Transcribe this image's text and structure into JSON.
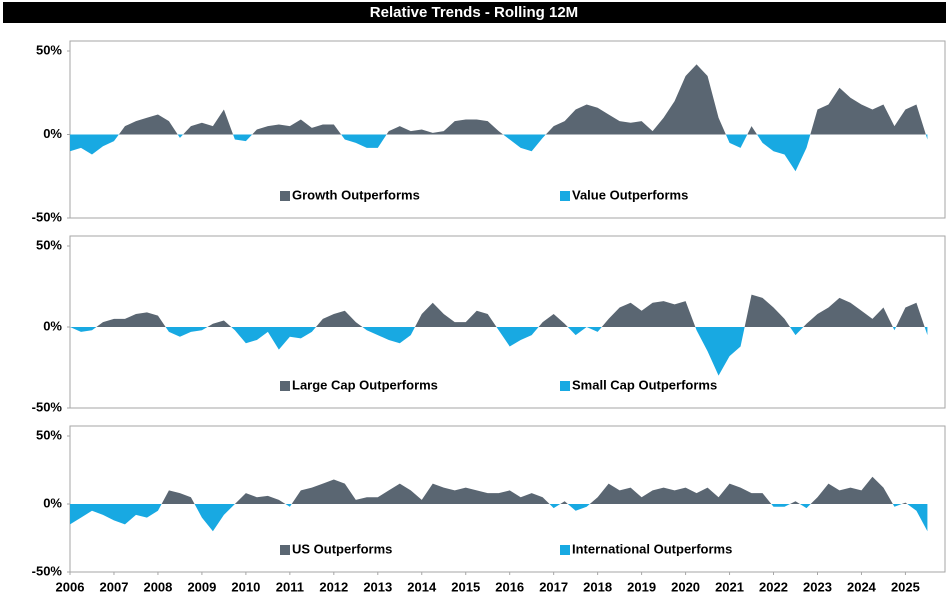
{
  "title": "Relative Trends - Rolling 12M",
  "chart_data": [
    {
      "type": "area",
      "legend": [
        {
          "name": "Growth Outperforms",
          "color": "#5a6672"
        },
        {
          "name": "Value Outperforms",
          "color": "#18a9e2"
        }
      ],
      "x": [
        2006,
        2006.25,
        2006.5,
        2006.75,
        2007,
        2007.25,
        2007.5,
        2007.75,
        2008,
        2008.25,
        2008.5,
        2008.75,
        2009,
        2009.25,
        2009.5,
        2009.75,
        2010,
        2010.25,
        2010.5,
        2010.75,
        2011,
        2011.25,
        2011.5,
        2011.75,
        2012,
        2012.25,
        2012.5,
        2012.75,
        2013,
        2013.25,
        2013.5,
        2013.75,
        2014,
        2014.25,
        2014.5,
        2014.75,
        2015,
        2015.25,
        2015.5,
        2015.75,
        2016,
        2016.25,
        2016.5,
        2016.75,
        2017,
        2017.25,
        2017.5,
        2017.75,
        2018,
        2018.25,
        2018.5,
        2018.75,
        2019,
        2019.25,
        2019.5,
        2019.75,
        2020,
        2020.25,
        2020.5,
        2020.75,
        2021,
        2021.25,
        2021.5,
        2021.75,
        2022,
        2022.25,
        2022.5,
        2022.75,
        2023,
        2023.25,
        2023.5,
        2023.75,
        2024,
        2024.25,
        2024.5,
        2024.75,
        2025,
        2025.25,
        2025.5
      ],
      "values": [
        -10,
        -8,
        -12,
        -7,
        -4,
        5,
        8,
        10,
        12,
        8,
        -2,
        5,
        7,
        5,
        15,
        -3,
        -4,
        3,
        5,
        6,
        5,
        9,
        4,
        6,
        6,
        -3,
        -5,
        -8,
        -8,
        2,
        5,
        2,
        3,
        1,
        2,
        8,
        9,
        9,
        8,
        2,
        -3,
        -8,
        -10,
        -2,
        5,
        8,
        15,
        18,
        16,
        12,
        8,
        7,
        8,
        2,
        10,
        20,
        35,
        42,
        35,
        10,
        -5,
        -8,
        5,
        -5,
        -10,
        -12,
        -22,
        -8,
        15,
        18,
        28,
        22,
        18,
        15,
        18,
        5,
        15,
        18,
        -3
      ],
      "xlim": [
        2006,
        2025.9
      ],
      "ylim": [
        -50,
        50
      ],
      "yticks": [
        {
          "value": 50,
          "label": "50%"
        },
        {
          "value": 0,
          "label": "0%"
        },
        {
          "value": -50,
          "label": "-50%"
        }
      ]
    },
    {
      "type": "area",
      "legend": [
        {
          "name": "Large Cap Outperforms",
          "color": "#5a6672"
        },
        {
          "name": "Small Cap Outperforms",
          "color": "#18a9e2"
        }
      ],
      "x": [
        2006,
        2006.25,
        2006.5,
        2006.75,
        2007,
        2007.25,
        2007.5,
        2007.75,
        2008,
        2008.25,
        2008.5,
        2008.75,
        2009,
        2009.25,
        2009.5,
        2009.75,
        2010,
        2010.25,
        2010.5,
        2010.75,
        2011,
        2011.25,
        2011.5,
        2011.75,
        2012,
        2012.25,
        2012.5,
        2012.75,
        2013,
        2013.25,
        2013.5,
        2013.75,
        2014,
        2014.25,
        2014.5,
        2014.75,
        2015,
        2015.25,
        2015.5,
        2015.75,
        2016,
        2016.25,
        2016.5,
        2016.75,
        2017,
        2017.25,
        2017.5,
        2017.75,
        2018,
        2018.25,
        2018.5,
        2018.75,
        2019,
        2019.25,
        2019.5,
        2019.75,
        2020,
        2020.25,
        2020.5,
        2020.75,
        2021,
        2021.25,
        2021.5,
        2021.75,
        2022,
        2022.25,
        2022.5,
        2022.75,
        2023,
        2023.25,
        2023.5,
        2023.75,
        2024,
        2024.25,
        2024.5,
        2024.75,
        2025,
        2025.25,
        2025.5
      ],
      "values": [
        0,
        -3,
        -2,
        3,
        5,
        5,
        8,
        9,
        7,
        -3,
        -6,
        -3,
        -2,
        2,
        4,
        -2,
        -10,
        -8,
        -3,
        -14,
        -6,
        -7,
        -3,
        5,
        8,
        10,
        3,
        -2,
        -5,
        -8,
        -10,
        -5,
        8,
        15,
        8,
        3,
        3,
        10,
        8,
        -2,
        -12,
        -8,
        -5,
        3,
        8,
        2,
        -5,
        0,
        -3,
        5,
        12,
        15,
        10,
        15,
        16,
        14,
        16,
        -2,
        -15,
        -30,
        -18,
        -12,
        20,
        18,
        12,
        5,
        -5,
        2,
        8,
        12,
        18,
        15,
        10,
        5,
        12,
        -2,
        12,
        15,
        -5
      ],
      "xlim": [
        2006,
        2025.9
      ],
      "ylim": [
        -50,
        50
      ],
      "yticks": [
        {
          "value": 50,
          "label": "50%"
        },
        {
          "value": 0,
          "label": "0%"
        },
        {
          "value": -50,
          "label": "-50%"
        }
      ]
    },
    {
      "type": "area",
      "legend": [
        {
          "name": "US Outperforms",
          "color": "#5a6672"
        },
        {
          "name": "International Outperforms",
          "color": "#18a9e2"
        }
      ],
      "x": [
        2006,
        2006.25,
        2006.5,
        2006.75,
        2007,
        2007.25,
        2007.5,
        2007.75,
        2008,
        2008.25,
        2008.5,
        2008.75,
        2009,
        2009.25,
        2009.5,
        2009.75,
        2010,
        2010.25,
        2010.5,
        2010.75,
        2011,
        2011.25,
        2011.5,
        2011.75,
        2012,
        2012.25,
        2012.5,
        2012.75,
        2013,
        2013.25,
        2013.5,
        2013.75,
        2014,
        2014.25,
        2014.5,
        2014.75,
        2015,
        2015.25,
        2015.5,
        2015.75,
        2016,
        2016.25,
        2016.5,
        2016.75,
        2017,
        2017.25,
        2017.5,
        2017.75,
        2018,
        2018.25,
        2018.5,
        2018.75,
        2019,
        2019.25,
        2019.5,
        2019.75,
        2020,
        2020.25,
        2020.5,
        2020.75,
        2021,
        2021.25,
        2021.5,
        2021.75,
        2022,
        2022.25,
        2022.5,
        2022.75,
        2023,
        2023.25,
        2023.5,
        2023.75,
        2024,
        2024.25,
        2024.5,
        2024.75,
        2025,
        2025.25,
        2025.5
      ],
      "values": [
        -15,
        -10,
        -5,
        -8,
        -12,
        -15,
        -8,
        -10,
        -5,
        10,
        8,
        5,
        -10,
        -20,
        -8,
        0,
        8,
        5,
        6,
        3,
        -2,
        10,
        12,
        15,
        18,
        15,
        3,
        5,
        5,
        10,
        15,
        10,
        3,
        15,
        12,
        10,
        12,
        10,
        8,
        8,
        10,
        5,
        8,
        5,
        -3,
        2,
        -5,
        -2,
        5,
        15,
        10,
        12,
        5,
        10,
        12,
        10,
        12,
        8,
        12,
        5,
        15,
        12,
        8,
        8,
        -2,
        -2,
        2,
        -3,
        5,
        15,
        10,
        12,
        10,
        20,
        12,
        -2,
        1,
        -5,
        -20
      ],
      "xlim": [
        2006,
        2025.9
      ],
      "ylim": [
        -50,
        50
      ],
      "yticks": [
        {
          "value": 50,
          "label": "50%"
        },
        {
          "value": 0,
          "label": "0%"
        },
        {
          "value": -50,
          "label": "-50%"
        }
      ],
      "xticks": [
        2006,
        2007,
        2008,
        2009,
        2010,
        2011,
        2012,
        2013,
        2014,
        2015,
        2016,
        2017,
        2018,
        2019,
        2020,
        2021,
        2022,
        2023,
        2024,
        2025
      ]
    }
  ]
}
